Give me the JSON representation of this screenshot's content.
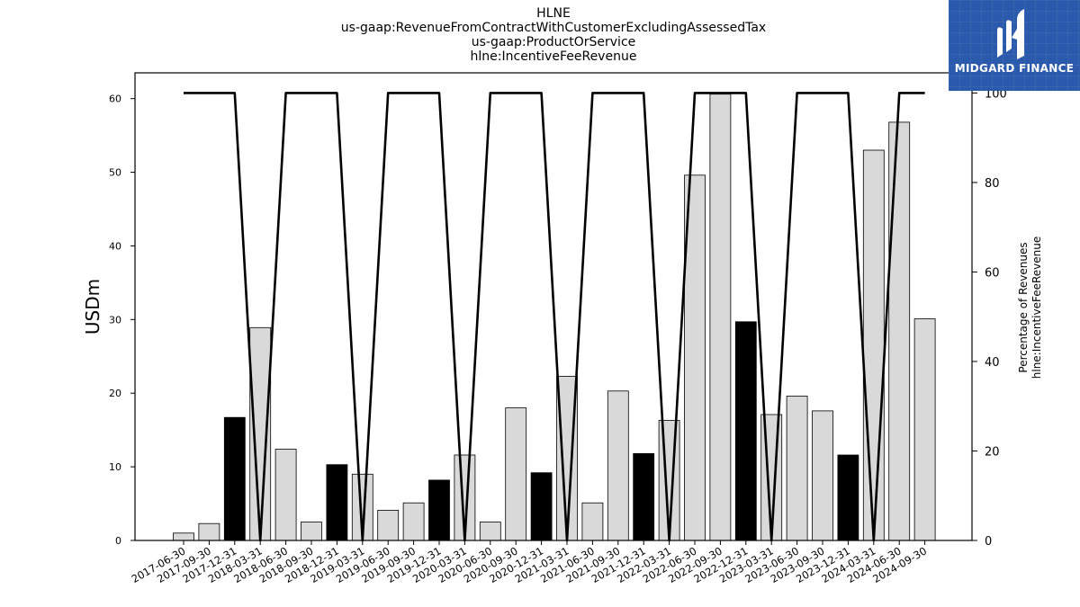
{
  "title_lines": [
    "HLNE",
    "us-gaap:RevenueFromContractWithCustomerExcludingAssessedTax",
    "us-gaap:ProductOrService",
    "hlne:IncentiveFeeRevenue"
  ],
  "logo": {
    "text": "MIDGARD FINANCE",
    "icon": "midgard-m-logo"
  },
  "colors": {
    "bar_gray": "#d9d9d9",
    "bar_highlight": "#000000",
    "line": "#000000",
    "logo_bg": "#2b5aac"
  },
  "chart_data": {
    "type": "bar",
    "categories": [
      "2017-06-30",
      "2017-09-30",
      "2017-12-31",
      "2018-03-31",
      "2018-06-30",
      "2018-09-30",
      "2018-12-31",
      "2019-03-31",
      "2019-06-30",
      "2019-09-30",
      "2019-12-31",
      "2020-03-31",
      "2020-06-30",
      "2020-09-30",
      "2020-12-31",
      "2021-03-31",
      "2021-06-30",
      "2021-09-30",
      "2021-12-31",
      "2022-03-31",
      "2022-06-30",
      "2022-09-30",
      "2022-12-31",
      "2023-03-31",
      "2023-06-30",
      "2023-09-30",
      "2023-12-31",
      "2024-03-31",
      "2024-06-30",
      "2024-09-30"
    ],
    "values": [
      1.0,
      2.3,
      16.7,
      28.9,
      12.4,
      2.5,
      10.3,
      9.0,
      4.1,
      5.1,
      8.2,
      11.6,
      2.5,
      18.0,
      9.2,
      22.3,
      5.1,
      20.3,
      11.8,
      16.3,
      49.6,
      60.6,
      29.7,
      17.1,
      19.6,
      17.6,
      11.6,
      53.0,
      56.8,
      30.1
    ],
    "highlight": [
      false,
      false,
      true,
      false,
      false,
      false,
      true,
      false,
      false,
      false,
      true,
      false,
      false,
      false,
      true,
      false,
      false,
      false,
      true,
      false,
      false,
      false,
      true,
      false,
      false,
      false,
      true,
      false,
      false,
      false
    ],
    "line_values": [
      100,
      100,
      100,
      0,
      100,
      100,
      100,
      0,
      100,
      100,
      100,
      0,
      100,
      100,
      100,
      0,
      100,
      100,
      100,
      0,
      100,
      100,
      100,
      0,
      100,
      100,
      100,
      0,
      100,
      100
    ],
    "ylabel": "USDm",
    "y2label_lines": [
      "Percentage of Revenues",
      "hlne:IncentiveFeeRevenue"
    ],
    "ylim": [
      0,
      63.5
    ],
    "y2lim": [
      0,
      104.5
    ],
    "yticks": [
      0,
      10,
      20,
      30,
      40,
      50,
      60
    ],
    "y2ticks": [
      0,
      20,
      40,
      60,
      80,
      100
    ],
    "grid": false
  }
}
